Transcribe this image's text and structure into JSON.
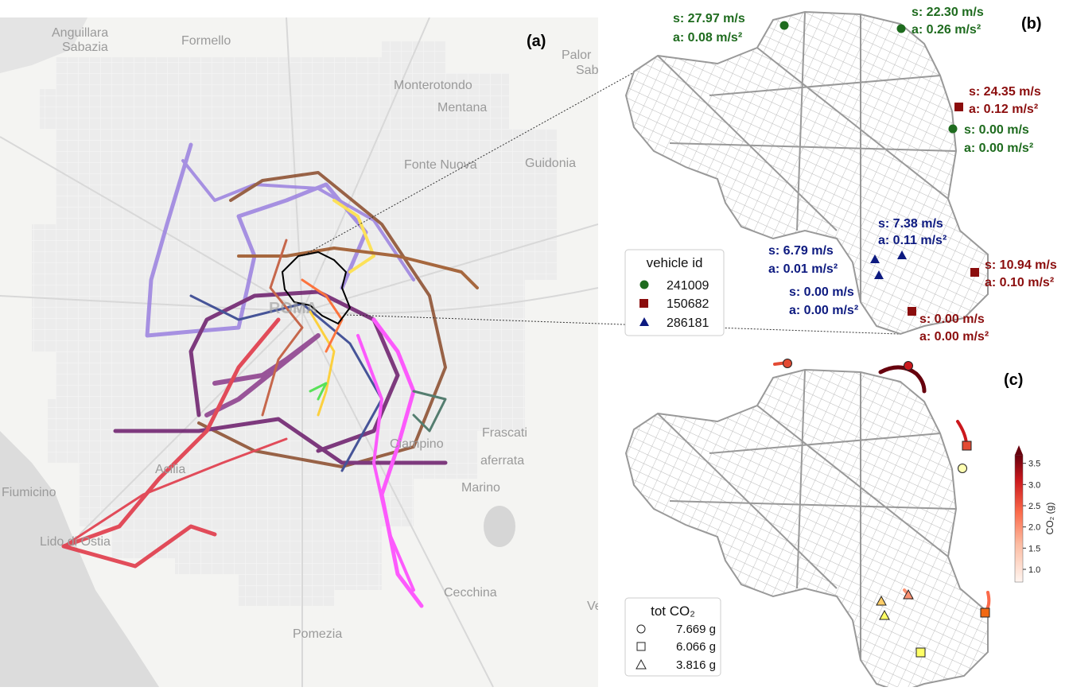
{
  "panel_labels": {
    "a": "(a)",
    "b": "(b)",
    "c": "(c)"
  },
  "map_places": [
    {
      "name": "Anguillara",
      "id": "anguillara"
    },
    {
      "name": "Sabazia",
      "id": "sabazia"
    },
    {
      "name": "Formello",
      "id": "formello"
    },
    {
      "name": "Monterotondo",
      "id": "monterotondo"
    },
    {
      "name": "Mentana",
      "id": "mentana"
    },
    {
      "name": "Palor",
      "id": "palor"
    },
    {
      "name": "Sab",
      "id": "sab"
    },
    {
      "name": "Fonte Nuova",
      "id": "fonte-nuova"
    },
    {
      "name": "Guidonia",
      "id": "guidonia"
    },
    {
      "name": "Frascati",
      "id": "frascati"
    },
    {
      "name": "aferrata",
      "id": "aferrata"
    },
    {
      "name": "Marino",
      "id": "marino"
    },
    {
      "name": "Ciampino",
      "id": "ciampino"
    },
    {
      "name": "Fiumicino",
      "id": "fiumicino"
    },
    {
      "name": "Acilia",
      "id": "acilia"
    },
    {
      "name": "Lido di Ostia",
      "id": "lido"
    },
    {
      "name": "Cecchina",
      "id": "cecchina"
    },
    {
      "name": "Pomezia",
      "id": "pomezia"
    },
    {
      "name": "Ve",
      "id": "ve"
    },
    {
      "name": "ROMA",
      "id": "roma"
    }
  ],
  "legend_vehicle": {
    "title": "vehicle id",
    "entries": [
      {
        "id": "241009",
        "marker": "circle",
        "color": "#1e6b1e"
      },
      {
        "id": "150682",
        "marker": "square",
        "color": "#8b0d0d"
      },
      {
        "id": "286181",
        "marker": "triangle",
        "color": "#0d1a80"
      }
    ]
  },
  "annotations_b": [
    {
      "s": "s: 27.97 m/s",
      "a": "a: 0.08 m/s²",
      "color": "#1e6b1e"
    },
    {
      "s": "s: 22.30 m/s",
      "a": "a: 0.26 m/s²",
      "color": "#1e6b1e"
    },
    {
      "s": "s: 24.35 m/s",
      "a": "a: 0.12 m/s²",
      "color": "#8b0d0d"
    },
    {
      "s": "s: 0.00 m/s",
      "a": "a: 0.00 m/s²",
      "color": "#1e6b1e"
    },
    {
      "s": "s: 7.38 m/s",
      "a": "a: 0.11 m/s²",
      "color": "#0d1a80"
    },
    {
      "s": "s: 6.79 m/s",
      "a": "a: 0.01 m/s²",
      "color": "#0d1a80"
    },
    {
      "s": "s: 10.94 m/s",
      "a": "a: 0.10 m/s²",
      "color": "#8b0d0d"
    },
    {
      "s": "s: 0.00 m/s",
      "a": "a: 0.00 m/s²",
      "color": "#0d1a80"
    },
    {
      "s": "s: 0.00 m/s",
      "a": "a: 0.00 m/s²",
      "color": "#8b0d0d"
    }
  ],
  "legend_co2": {
    "title": "tot CO₂",
    "entries": [
      {
        "marker": "circle",
        "value": "7.669 g"
      },
      {
        "marker": "square",
        "value": "6.066 g"
      },
      {
        "marker": "triangle",
        "value": "3.816 g"
      }
    ]
  },
  "colorbar": {
    "label": "CO₂ (g)",
    "ticks": [
      "1.0",
      "1.5",
      "2.0",
      "2.5",
      "3.0",
      "3.5"
    ],
    "min": 0.7,
    "max": 3.7
  },
  "colors": {
    "speed_green": "#1e6b1e",
    "speed_red": "#8b0d0d",
    "speed_blue": "#0d1a80",
    "cmap_low": "#fff5f0",
    "cmap_high": "#67000d"
  }
}
